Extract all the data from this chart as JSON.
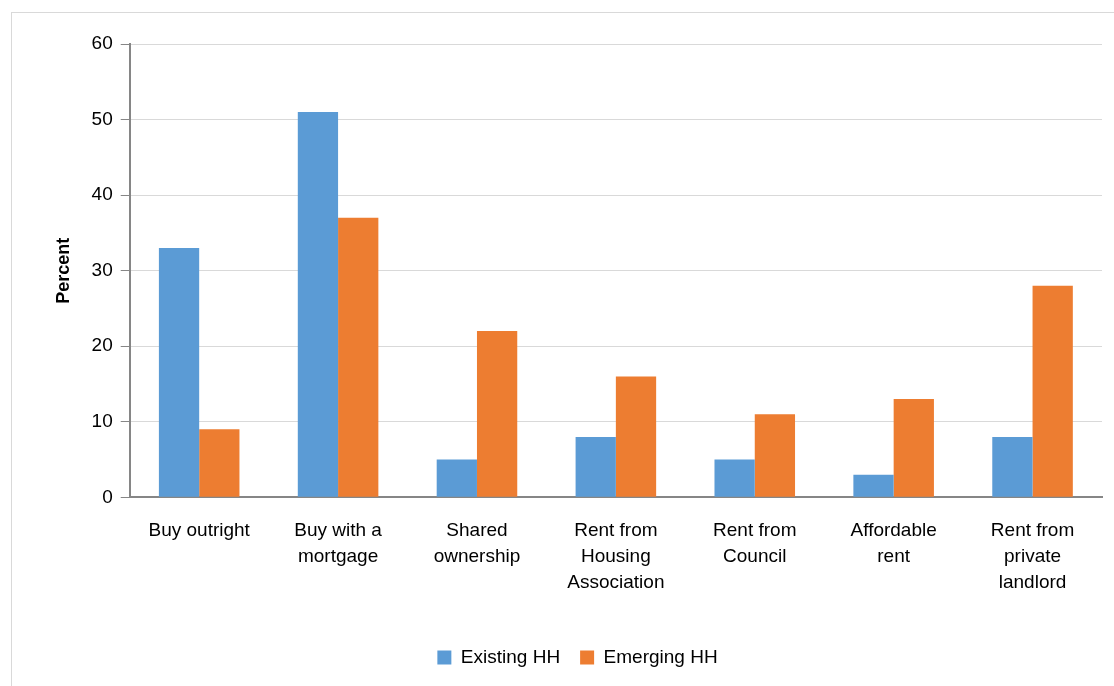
{
  "chart_data": {
    "type": "bar",
    "ylabel": "Percent",
    "categories": [
      "Buy outright",
      "Buy with a mortgage",
      "Shared ownership",
      "Rent from Housing Association",
      "Rent from Council",
      "Affordable rent",
      "Rent from private landlord"
    ],
    "series": [
      {
        "name": "Existing HH",
        "color": "#5b9bd5",
        "values": [
          33,
          51,
          5,
          8,
          5,
          3,
          8
        ]
      },
      {
        "name": "Emerging HH",
        "color": "#ed7d31",
        "values": [
          9,
          37,
          22,
          16,
          11,
          13,
          28
        ]
      }
    ],
    "ylim": [
      0,
      60
    ],
    "yticks": [
      0,
      10,
      20,
      30,
      40,
      50,
      60
    ],
    "grid": "y",
    "legend": "bottom"
  }
}
